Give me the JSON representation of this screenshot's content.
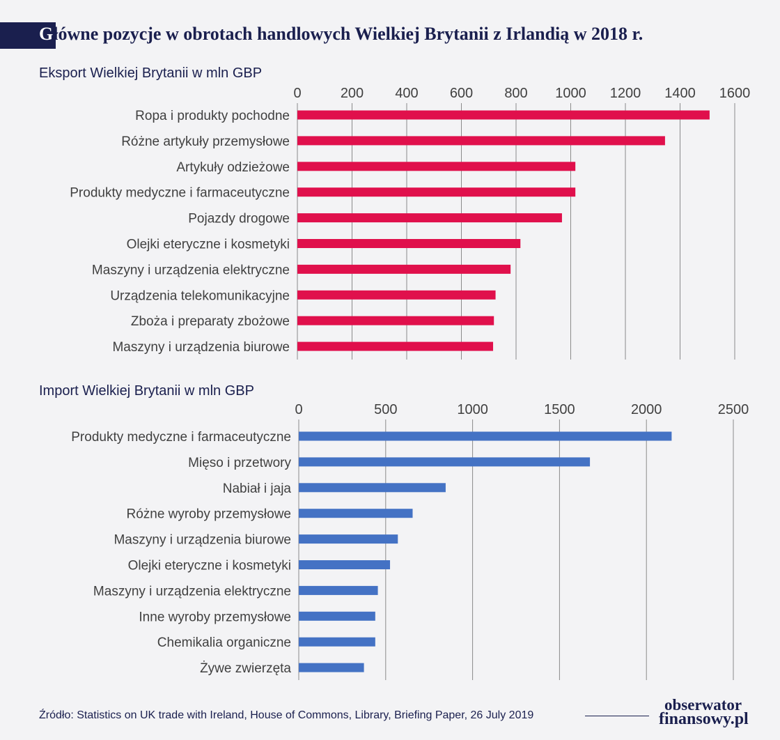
{
  "title": {
    "first_letter": "G",
    "rest": "łówne pozycje w obrotach handlowych Wielkiej Brytanii z Irlandią w 2018 r."
  },
  "colors": {
    "export": "#e0104c",
    "import": "#4472c4",
    "navy": "#1a1f4e",
    "grid": "#8a8a8a",
    "background": "#f3f3f5"
  },
  "chart_data": [
    {
      "type": "bar",
      "orientation": "horizontal",
      "title": "Eksport Wielkiej Brytanii w mln GBP",
      "xlim": [
        0,
        1600
      ],
      "ticks": [
        0,
        200,
        400,
        600,
        800,
        1000,
        1200,
        1400,
        1600
      ],
      "categories": [
        "Ropa i produkty pochodne",
        "Różne artykuły przemysłowe",
        "Artykuły odzieżowe",
        "Produkty medyczne i farmaceutyczne",
        "Pojazdy drogowe",
        "Olejki eteryczne i kosmetyki",
        "Maszyny i urządzenia elektryczne",
        "Urządzenia telekomunikacyjne",
        "Zboża i preparaty zbożowe",
        "Maszyny i urządzenia biurowe"
      ],
      "values": [
        1508,
        1345,
        1017,
        1017,
        968,
        816,
        780,
        725,
        719,
        716
      ]
    },
    {
      "type": "bar",
      "orientation": "horizontal",
      "title": "Import Wielkiej Brytanii w mln GBP",
      "xlim": [
        0,
        2500
      ],
      "ticks": [
        0,
        500,
        1000,
        1500,
        2000,
        2500
      ],
      "categories": [
        "Produkty medyczne i farmaceutyczne",
        "Mięso i przetwory",
        "Nabiał i jaja",
        "Różne wyroby przemysłowe",
        "Maszyny i urządzenia biurowe",
        "Olejki eteryczne i kosmetyki",
        "Maszyny i urządzenia elektryczne",
        "Inne wyroby przemysłowe",
        "Chemikalia organiczne",
        "Żywe zwierzęta"
      ],
      "values": [
        2145,
        1675,
        845,
        655,
        570,
        525,
        455,
        440,
        440,
        375
      ]
    }
  ],
  "footer": {
    "source": "Źródło: Statistics on UK trade with Ireland, House of Commons, Library, Briefing Paper, 26 July 2019",
    "logo_line1": "obserwator",
    "logo_line2": "finansowy.pl"
  }
}
